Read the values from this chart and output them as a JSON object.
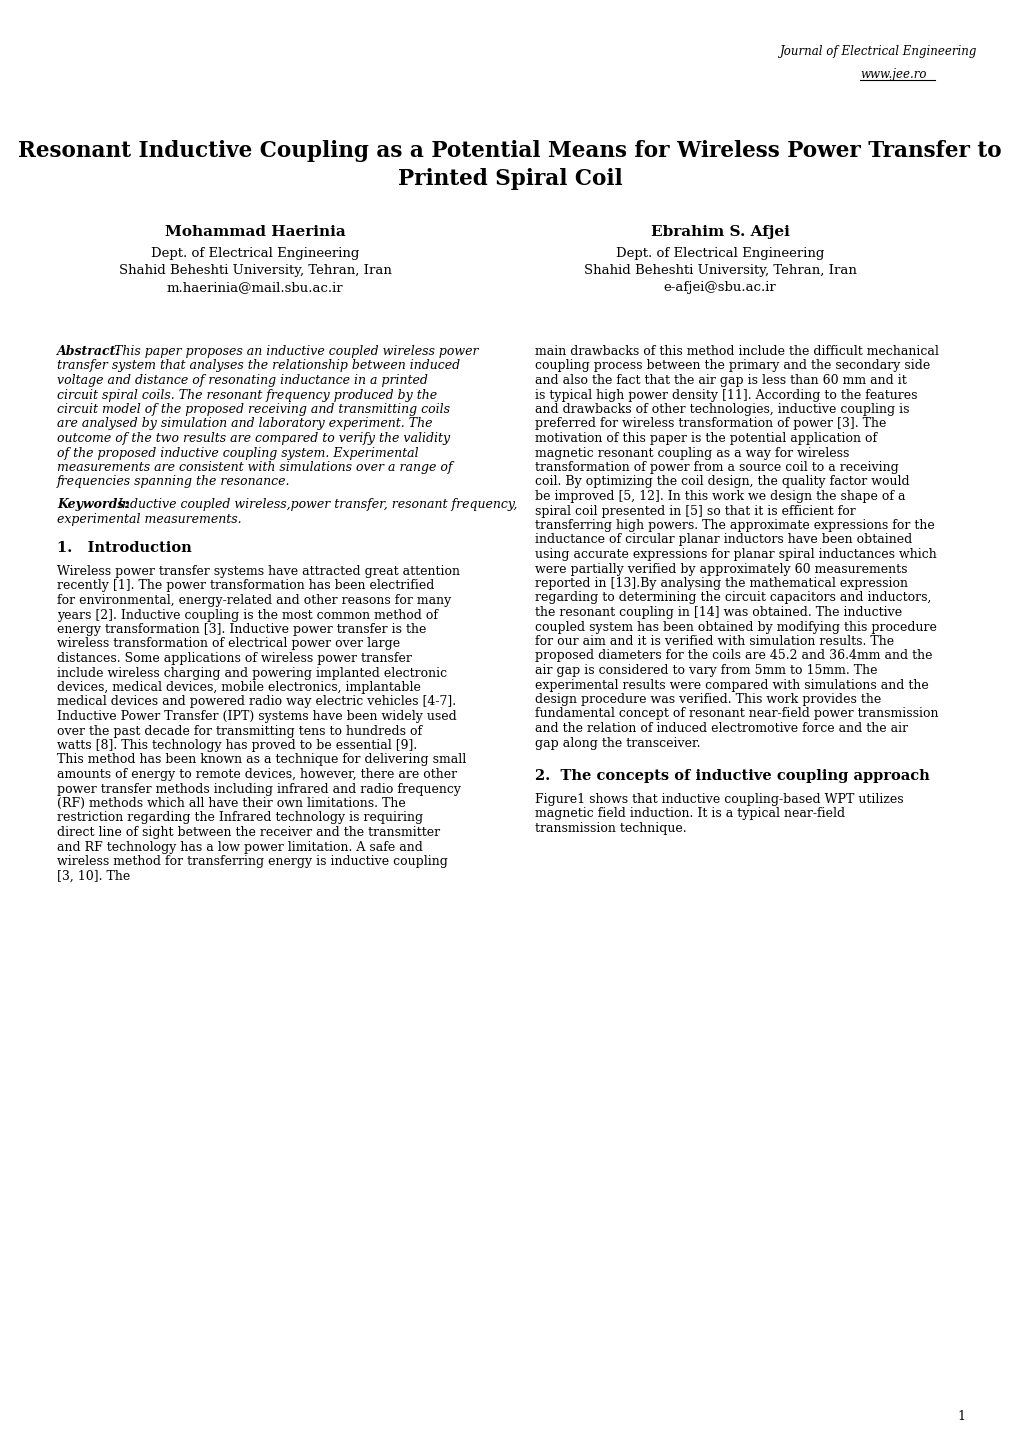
{
  "background_color": "#ffffff",
  "header_journal": "Journal of Electrical Engineering",
  "header_url": "www.jee.ro",
  "title_line1": "Resonant Inductive Coupling as a Potential Means for Wireless Power Transfer to",
  "title_line2": "Printed Spiral Coil",
  "author1_name": "Mohammad Haerinia",
  "author1_dept": "Dept. of Electrical Engineering",
  "author1_univ": "Shahid Beheshti University, Tehran, Iran",
  "author1_email": "m.haerinia@mail.sbu.ac.ir",
  "author2_name": "Ebrahim S. Afjei",
  "author2_dept": "Dept. of Electrical Engineering",
  "author2_univ": "Shahid Beheshti University, Tehran, Iran",
  "author2_email": "e-afjei@sbu.ac.ir",
  "abstract_label": "Abstract:",
  "abstract_text": " This paper proposes an inductive coupled wireless power transfer system that analyses the relationship between induced voltage and distance of resonating inductance in a printed circuit spiral coils. The resonant frequency produced by the circuit model of the proposed receiving and transmitting coils are analysed by simulation and laboratory experiment. The outcome of the two results are compared to verify the validity of the proposed inductive coupling system. Experimental measurements are consistent with simulations over a range of frequencies spanning the resonance.",
  "keywords_label": "Keywords:",
  "keywords_text": " Inductive coupled wireless,power transfer, resonant frequency, experimental measurements.",
  "section1_title": "1.   Introduction",
  "section1_left_text": "Wireless power transfer systems have attracted great attention recently [1]. The power transformation has been electrified for environmental, energy-related and other reasons for many years [2]. Inductive coupling is the most common method of energy transformation [3]. Inductive power transfer is the wireless transformation of electrical power over large distances. Some applications of wireless power transfer include wireless charging and powering implanted electronic devices, medical devices, mobile electronics, implantable medical devices and powered radio way electric vehicles [4-7]. Inductive Power Transfer (IPT) systems have been widely used over the past decade for transmitting tens to hundreds of watts [8]. This technology has proved to be essential [9]. This method has been known as a technique for delivering small amounts of energy to remote devices, however, there are other power transfer methods including infrared and radio frequency (RF) methods which all have their own limitations. The restriction regarding the Infrared technology is requiring direct line of sight between the receiver and the transmitter and RF technology has a low power limitation. A safe and wireless method for transferring energy is inductive coupling [3, 10]. The",
  "section1_right_text": "main drawbacks of this method include the difficult mechanical coupling process between the primary and the secondary side and also the fact that the air gap is less than 60 mm and it is typical high power density [11]. According to the features and drawbacks of other technologies, inductive coupling is preferred for wireless transformation of power [3]. The motivation of this paper is the potential application of magnetic resonant coupling as a way for wireless transformation of power from a source coil to a receiving coil. By optimizing the coil design, the quality factor would be improved [5, 12]. In this work we design the shape of a spiral coil presented in [5] so that it is efficient for transferring high powers. The approximate expressions for the inductance of circular planar inductors have been obtained using accurate expressions for planar spiral inductances which were partially verified by approximately 60 measurements reported in [13].By analysing the mathematical expression regarding to determining the circuit capacitors and inductors, the resonant coupling in [14] was obtained. The inductive coupled system has been obtained by modifying this procedure for our aim and it is verified with simulation results. The proposed diameters for the coils are 45.2 and 36.4mm and the air gap is considered to vary from 5mm to 15mm. The experimental results were compared with simulations and the design procedure was verified. This work provides the fundamental concept of resonant near-field power transmission and the relation of induced electromotive force and the air gap along the transceiver.",
  "section2_title": "2.  The concepts of inductive coupling approach",
  "section2_right_text": "Figure1 shows that inductive coupling-based WPT utilizes magnetic field induction. It is a typical near-field transmission technique.",
  "page_number": "1"
}
